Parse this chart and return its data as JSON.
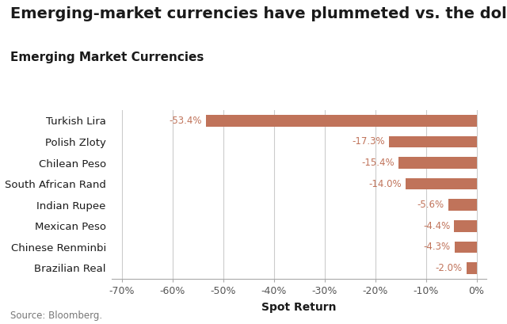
{
  "title": "Emerging-market currencies have plummeted vs. the dollar",
  "subtitle": "Emerging Market Currencies",
  "xlabel": "Spot Return",
  "source": "Source: Bloomberg.",
  "categories": [
    "Turkish Lira",
    "Polish Zloty",
    "Chilean Peso",
    "South African Rand",
    "Indian Rupee",
    "Mexican Peso",
    "Chinese Renminbi",
    "Brazilian Real"
  ],
  "values": [
    -53.4,
    -17.3,
    -15.4,
    -14.0,
    -5.6,
    -4.4,
    -4.3,
    -2.0
  ],
  "labels": [
    "-53.4%",
    "-17.3%",
    "-15.4%",
    "-14.0%",
    "-5.6%",
    "-4.4%",
    "-4.3%",
    "-2.0%"
  ],
  "bar_color": "#c0735a",
  "label_color": "#c0735a",
  "title_color": "#1a1a1a",
  "subtitle_color": "#1a1a1a",
  "axis_color": "#aaaaaa",
  "grid_color": "#cccccc",
  "background_color": "#ffffff",
  "xlim": [
    -72,
    2
  ],
  "xticks": [
    -70,
    -60,
    -50,
    -40,
    -30,
    -20,
    -10,
    0
  ],
  "xtick_labels": [
    "-70%",
    "-60%",
    "-50%",
    "-40%",
    "-30%",
    "-20%",
    "-10%",
    "0%"
  ],
  "title_fontsize": 14,
  "subtitle_fontsize": 11,
  "label_fontsize": 8.5,
  "tick_fontsize": 9,
  "ytick_fontsize": 9.5,
  "source_fontsize": 8.5,
  "bar_height": 0.55
}
